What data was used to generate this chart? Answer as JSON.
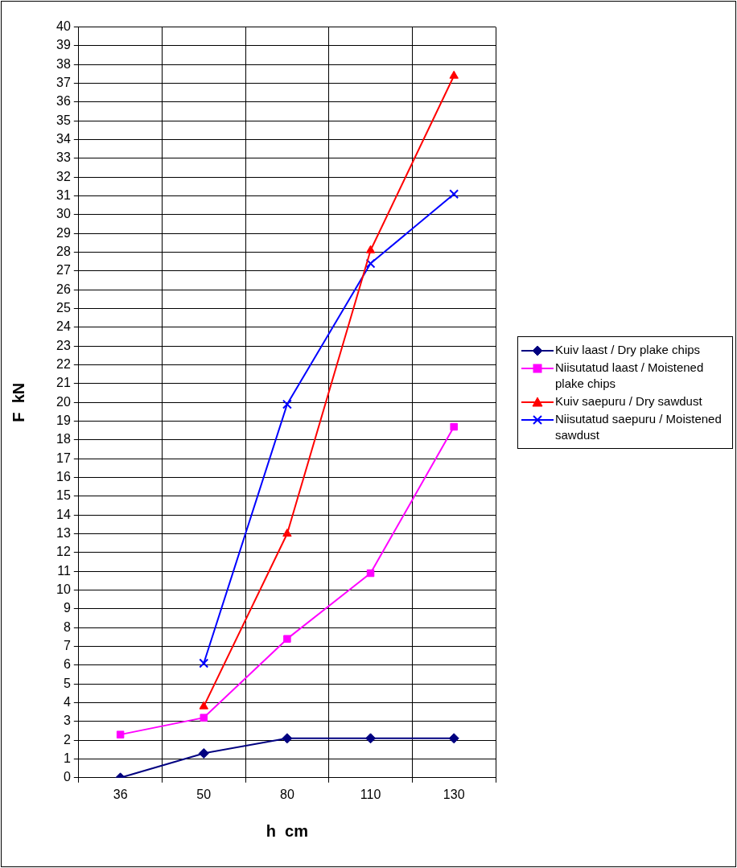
{
  "chart_data": {
    "type": "line",
    "xlabel": "h  cm",
    "ylabel": "F  kN",
    "categories": [
      "36",
      "50",
      "80",
      "110",
      "130"
    ],
    "series": [
      {
        "name": "Kuiv laast / Dry plake chips",
        "color": "#000080",
        "marker": "diamond",
        "values": [
          0,
          1.3,
          2.1,
          2.1,
          2.1
        ]
      },
      {
        "name": "Niisutatud laast / Moistened plake chips",
        "color": "#ff00ff",
        "marker": "square",
        "values": [
          2.3,
          3.2,
          7.4,
          10.9,
          18.7
        ]
      },
      {
        "name": "Kuiv saepuru / Dry sawdust",
        "color": "#ff0000",
        "marker": "triangle",
        "values": [
          null,
          3.8,
          13.0,
          28.1,
          37.4
        ]
      },
      {
        "name": "Niisutatud saepuru / Moistened sawdust",
        "color": "#0000ff",
        "marker": "cross",
        "values": [
          null,
          6.1,
          19.9,
          27.4,
          31.1
        ]
      }
    ],
    "ylim": [
      0,
      40
    ],
    "yticks": [
      0,
      1,
      2,
      3,
      4,
      5,
      6,
      7,
      8,
      9,
      10,
      11,
      12,
      13,
      14,
      15,
      16,
      17,
      18,
      19,
      20,
      21,
      22,
      23,
      24,
      25,
      26,
      27,
      28,
      29,
      30,
      31,
      32,
      33,
      34,
      35,
      36,
      37,
      38,
      39,
      40
    ],
    "grid": true,
    "legend": "right"
  }
}
